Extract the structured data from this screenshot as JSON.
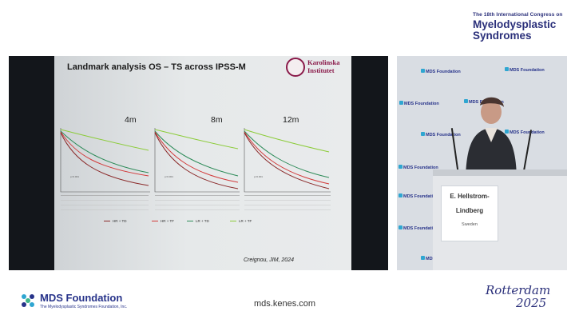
{
  "congress": {
    "edition_line": "The 18th International Congress on",
    "name_line1": "Myelodysplastic",
    "name_line2": "Syndromes"
  },
  "slide": {
    "title": "Landmark analysis OS – TS across IPSS-M",
    "logo_text_1": "Karolinska",
    "logo_text_2": "Institutet",
    "panels": [
      "4m",
      "8m",
      "12m"
    ],
    "legend": [
      "HR + TD",
      "HR + TF",
      "LR + TD",
      "LR + TF"
    ],
    "legend_colors": [
      "#8b2a2a",
      "#d23a3a",
      "#2f8c5a",
      "#8ccc3a"
    ],
    "citation": "Creignou, JIM, 2024"
  },
  "speaker": {
    "name_line1": "E. Hellstrom-",
    "name_line2": "Lindberg",
    "country": "Sweden",
    "backdrop_text": "MDS Foundation"
  },
  "footer": {
    "org_name": "MDS Foundation",
    "org_sub": "The Myelodysplastic Syndromes Foundation, Inc.",
    "url": "mds.kenes.com",
    "city": "Rotterdam",
    "year": "2025"
  },
  "icons": {
    "institute_logo": "karolinska-seal-icon",
    "org_logo": "mds-foundation-icon"
  }
}
